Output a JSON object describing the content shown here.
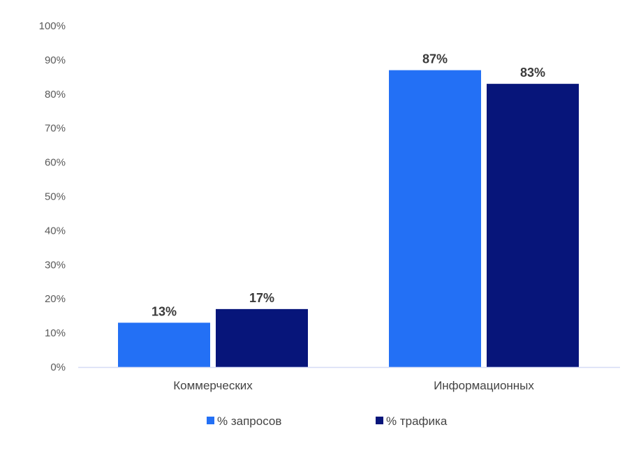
{
  "chart_data": {
    "type": "bar",
    "categories": [
      "Коммерческих",
      "Информационных"
    ],
    "series": [
      {
        "name": "% запросов",
        "values": [
          13,
          87
        ],
        "color": "#2370f5",
        "labels": [
          "13%",
          "87%"
        ]
      },
      {
        "name": "% трафика",
        "values": [
          17,
          83
        ],
        "color": "#07157a",
        "labels": [
          "17%",
          "83%"
        ]
      }
    ],
    "ylim": [
      0,
      100
    ],
    "yticks": [
      0,
      10,
      20,
      30,
      40,
      50,
      60,
      70,
      80,
      90,
      100
    ],
    "ytick_labels": [
      "0%",
      "10%",
      "20%",
      "30%",
      "40%",
      "50%",
      "60%",
      "70%",
      "80%",
      "90%",
      "100%"
    ],
    "grid": false,
    "legend": "bottom-center",
    "axis_color": "#d6dbf5"
  }
}
